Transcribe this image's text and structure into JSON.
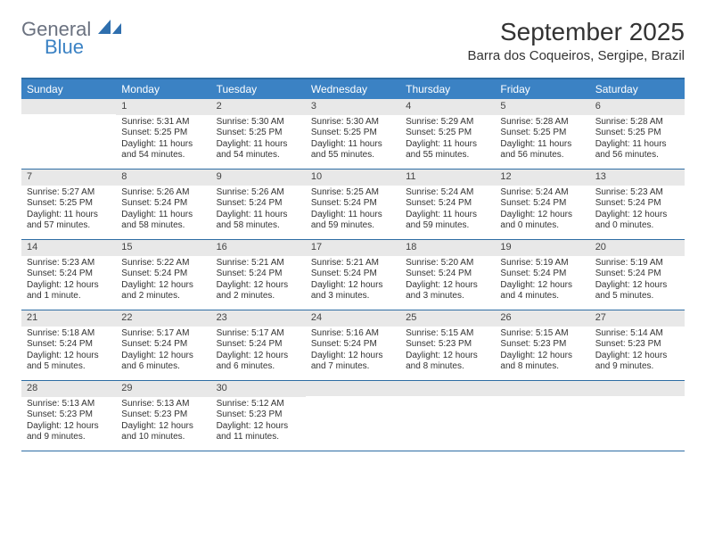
{
  "brand": {
    "word1": "General",
    "word2": "Blue"
  },
  "title": "September 2025",
  "location": "Barra dos Coqueiros, Sergipe, Brazil",
  "dow": [
    "Sunday",
    "Monday",
    "Tuesday",
    "Wednesday",
    "Thursday",
    "Friday",
    "Saturday"
  ],
  "colors": {
    "header_bg": "#3b82c4",
    "border": "#2e6da4",
    "daynum_bg": "#e8e8e8",
    "text": "#333333"
  },
  "weeks": [
    [
      {
        "n": "",
        "sr": "",
        "ss": "",
        "dl": ""
      },
      {
        "n": "1",
        "sr": "Sunrise: 5:31 AM",
        "ss": "Sunset: 5:25 PM",
        "dl": "Daylight: 11 hours and 54 minutes."
      },
      {
        "n": "2",
        "sr": "Sunrise: 5:30 AM",
        "ss": "Sunset: 5:25 PM",
        "dl": "Daylight: 11 hours and 54 minutes."
      },
      {
        "n": "3",
        "sr": "Sunrise: 5:30 AM",
        "ss": "Sunset: 5:25 PM",
        "dl": "Daylight: 11 hours and 55 minutes."
      },
      {
        "n": "4",
        "sr": "Sunrise: 5:29 AM",
        "ss": "Sunset: 5:25 PM",
        "dl": "Daylight: 11 hours and 55 minutes."
      },
      {
        "n": "5",
        "sr": "Sunrise: 5:28 AM",
        "ss": "Sunset: 5:25 PM",
        "dl": "Daylight: 11 hours and 56 minutes."
      },
      {
        "n": "6",
        "sr": "Sunrise: 5:28 AM",
        "ss": "Sunset: 5:25 PM",
        "dl": "Daylight: 11 hours and 56 minutes."
      }
    ],
    [
      {
        "n": "7",
        "sr": "Sunrise: 5:27 AM",
        "ss": "Sunset: 5:25 PM",
        "dl": "Daylight: 11 hours and 57 minutes."
      },
      {
        "n": "8",
        "sr": "Sunrise: 5:26 AM",
        "ss": "Sunset: 5:24 PM",
        "dl": "Daylight: 11 hours and 58 minutes."
      },
      {
        "n": "9",
        "sr": "Sunrise: 5:26 AM",
        "ss": "Sunset: 5:24 PM",
        "dl": "Daylight: 11 hours and 58 minutes."
      },
      {
        "n": "10",
        "sr": "Sunrise: 5:25 AM",
        "ss": "Sunset: 5:24 PM",
        "dl": "Daylight: 11 hours and 59 minutes."
      },
      {
        "n": "11",
        "sr": "Sunrise: 5:24 AM",
        "ss": "Sunset: 5:24 PM",
        "dl": "Daylight: 11 hours and 59 minutes."
      },
      {
        "n": "12",
        "sr": "Sunrise: 5:24 AM",
        "ss": "Sunset: 5:24 PM",
        "dl": "Daylight: 12 hours and 0 minutes."
      },
      {
        "n": "13",
        "sr": "Sunrise: 5:23 AM",
        "ss": "Sunset: 5:24 PM",
        "dl": "Daylight: 12 hours and 0 minutes."
      }
    ],
    [
      {
        "n": "14",
        "sr": "Sunrise: 5:23 AM",
        "ss": "Sunset: 5:24 PM",
        "dl": "Daylight: 12 hours and 1 minute."
      },
      {
        "n": "15",
        "sr": "Sunrise: 5:22 AM",
        "ss": "Sunset: 5:24 PM",
        "dl": "Daylight: 12 hours and 2 minutes."
      },
      {
        "n": "16",
        "sr": "Sunrise: 5:21 AM",
        "ss": "Sunset: 5:24 PM",
        "dl": "Daylight: 12 hours and 2 minutes."
      },
      {
        "n": "17",
        "sr": "Sunrise: 5:21 AM",
        "ss": "Sunset: 5:24 PM",
        "dl": "Daylight: 12 hours and 3 minutes."
      },
      {
        "n": "18",
        "sr": "Sunrise: 5:20 AM",
        "ss": "Sunset: 5:24 PM",
        "dl": "Daylight: 12 hours and 3 minutes."
      },
      {
        "n": "19",
        "sr": "Sunrise: 5:19 AM",
        "ss": "Sunset: 5:24 PM",
        "dl": "Daylight: 12 hours and 4 minutes."
      },
      {
        "n": "20",
        "sr": "Sunrise: 5:19 AM",
        "ss": "Sunset: 5:24 PM",
        "dl": "Daylight: 12 hours and 5 minutes."
      }
    ],
    [
      {
        "n": "21",
        "sr": "Sunrise: 5:18 AM",
        "ss": "Sunset: 5:24 PM",
        "dl": "Daylight: 12 hours and 5 minutes."
      },
      {
        "n": "22",
        "sr": "Sunrise: 5:17 AM",
        "ss": "Sunset: 5:24 PM",
        "dl": "Daylight: 12 hours and 6 minutes."
      },
      {
        "n": "23",
        "sr": "Sunrise: 5:17 AM",
        "ss": "Sunset: 5:24 PM",
        "dl": "Daylight: 12 hours and 6 minutes."
      },
      {
        "n": "24",
        "sr": "Sunrise: 5:16 AM",
        "ss": "Sunset: 5:24 PM",
        "dl": "Daylight: 12 hours and 7 minutes."
      },
      {
        "n": "25",
        "sr": "Sunrise: 5:15 AM",
        "ss": "Sunset: 5:23 PM",
        "dl": "Daylight: 12 hours and 8 minutes."
      },
      {
        "n": "26",
        "sr": "Sunrise: 5:15 AM",
        "ss": "Sunset: 5:23 PM",
        "dl": "Daylight: 12 hours and 8 minutes."
      },
      {
        "n": "27",
        "sr": "Sunrise: 5:14 AM",
        "ss": "Sunset: 5:23 PM",
        "dl": "Daylight: 12 hours and 9 minutes."
      }
    ],
    [
      {
        "n": "28",
        "sr": "Sunrise: 5:13 AM",
        "ss": "Sunset: 5:23 PM",
        "dl": "Daylight: 12 hours and 9 minutes."
      },
      {
        "n": "29",
        "sr": "Sunrise: 5:13 AM",
        "ss": "Sunset: 5:23 PM",
        "dl": "Daylight: 12 hours and 10 minutes."
      },
      {
        "n": "30",
        "sr": "Sunrise: 5:12 AM",
        "ss": "Sunset: 5:23 PM",
        "dl": "Daylight: 12 hours and 11 minutes."
      },
      {
        "n": "",
        "sr": "",
        "ss": "",
        "dl": ""
      },
      {
        "n": "",
        "sr": "",
        "ss": "",
        "dl": ""
      },
      {
        "n": "",
        "sr": "",
        "ss": "",
        "dl": ""
      },
      {
        "n": "",
        "sr": "",
        "ss": "",
        "dl": ""
      }
    ]
  ]
}
